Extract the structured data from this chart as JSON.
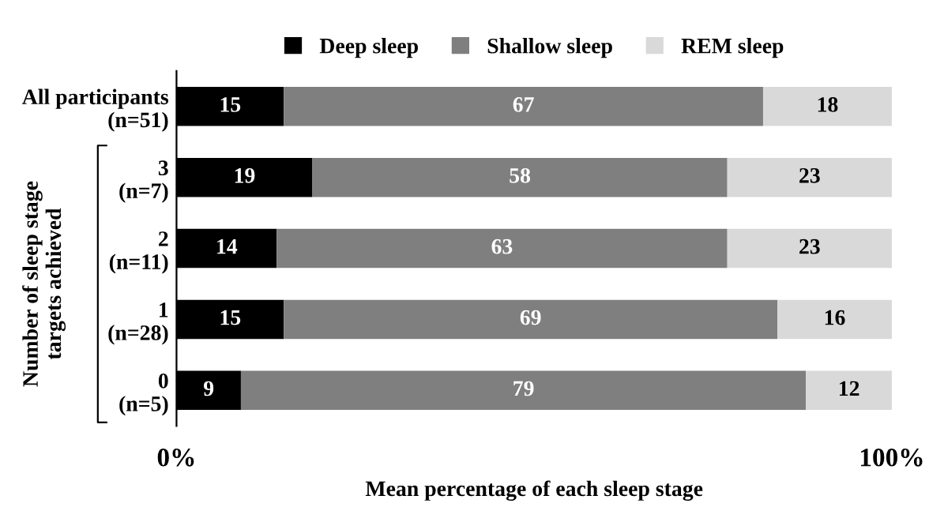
{
  "chart_data": {
    "type": "bar",
    "orientation": "horizontal",
    "stacked": true,
    "categories": [
      "All participants\n(n=51)",
      "3\n(n=7)",
      "2\n(n=11)",
      "1\n(n=28)",
      "0\n(n=5)"
    ],
    "series": [
      {
        "name": "Deep sleep",
        "color": "#000000",
        "values": [
          15,
          19,
          14,
          15,
          9
        ]
      },
      {
        "name": "Shallow sleep",
        "color": "#7f7f7f",
        "values": [
          67,
          58,
          63,
          69,
          79
        ]
      },
      {
        "name": "REM sleep",
        "color": "#d9d9d9",
        "values": [
          18,
          23,
          23,
          16,
          12
        ]
      }
    ],
    "xlabel": "Mean percentage of each sleep stage",
    "ylabel": "Number of sleep stage\ntargets achieved",
    "xlim": [
      0,
      100
    ],
    "xticks": [
      {
        "value": 0,
        "label": "0%"
      },
      {
        "value": 100,
        "label": "100%"
      }
    ],
    "data_labels": true,
    "legend": "top",
    "grid": false
  }
}
